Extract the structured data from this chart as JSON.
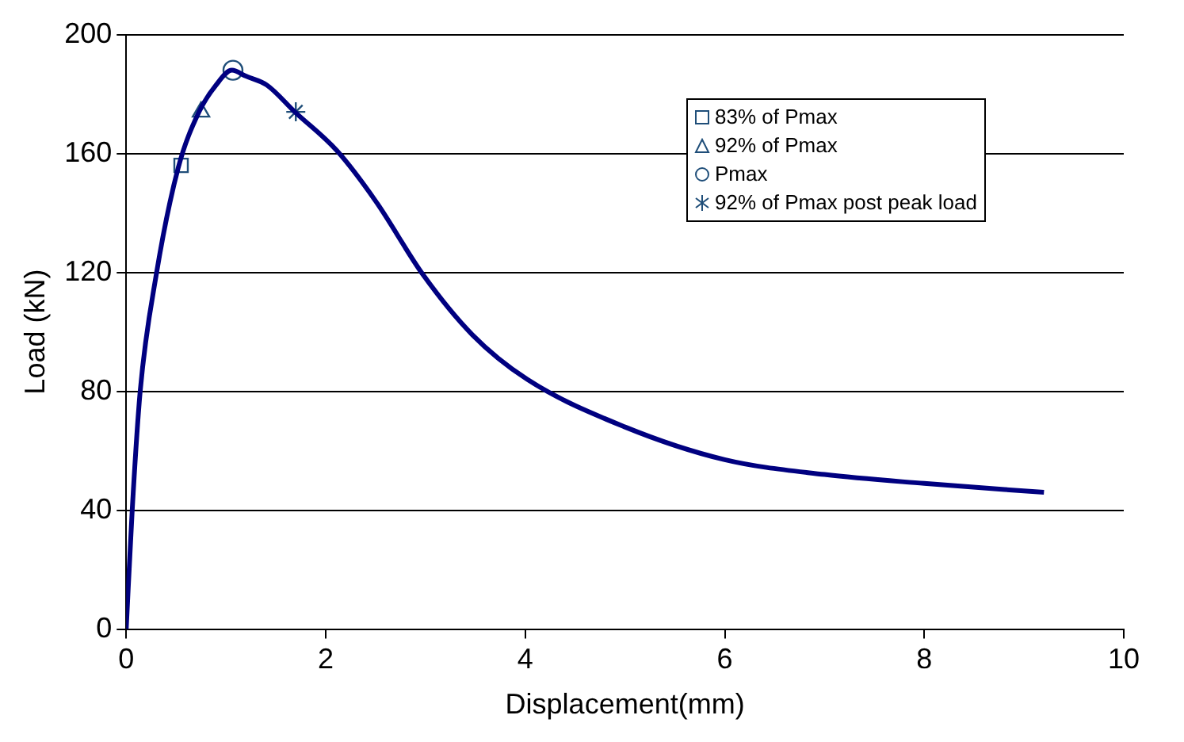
{
  "chart_data": {
    "type": "line",
    "xlabel": "Displacement(mm)",
    "ylabel": "Load (kN)",
    "xlim": [
      0,
      10
    ],
    "xticks": [
      0,
      2,
      4,
      6,
      8,
      10
    ],
    "ylim": [
      0,
      200
    ],
    "yticks": [
      0,
      40,
      80,
      120,
      160,
      200
    ],
    "grid": "y",
    "legend": "top right",
    "line_style": "solid",
    "series": [
      {
        "color": "#000080",
        "marker": "none",
        "x": [
          0,
          0.06,
          0.14,
          0.3,
          0.52,
          0.73,
          0.9,
          1.06,
          1.2,
          1.41,
          1.69,
          2.11,
          2.5,
          2.98,
          3.47,
          4.02,
          5,
          6,
          7,
          8,
          9.2
        ],
        "values": [
          0,
          40,
          80,
          119,
          155,
          174,
          183,
          188,
          186,
          183,
          174,
          161,
          144,
          119,
          99,
          84,
          68,
          57,
          52,
          49,
          46
        ]
      },
      {
        "name": "83% of Pmax",
        "type": "scatter",
        "color": "#1f4e79",
        "marker": "square",
        "x": [
          0.55
        ],
        "values": [
          156
        ]
      },
      {
        "name": "92% of Pmax",
        "type": "scatter",
        "color": "#1f4e79",
        "marker": "triangle",
        "x": [
          0.75
        ],
        "values": [
          174
        ]
      },
      {
        "name": "Pmax",
        "type": "scatter",
        "color": "#1f4e79",
        "marker": "circle",
        "x": [
          1.07
        ],
        "values": [
          188
        ]
      },
      {
        "name": "92% of Pmax post peak load",
        "type": "scatter",
        "color": "#1f4e79",
        "marker": "cross",
        "x": [
          1.7
        ],
        "values": [
          174
        ]
      }
    ]
  }
}
